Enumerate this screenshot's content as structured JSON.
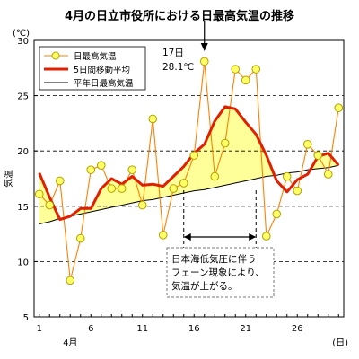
{
  "chart_data": {
    "type": "line",
    "title": "4月の日立市役所における日最高気温の推移",
    "yunit": "(℃)",
    "ylabel": "気温",
    "xunit": "(日)",
    "month_label": "4月",
    "ylim": [
      5,
      30
    ],
    "yticks": [
      5,
      10,
      15,
      20,
      25,
      30
    ],
    "xlim": [
      0.5,
      30.5
    ],
    "xticks": [
      1,
      6,
      11,
      16,
      21,
      26
    ],
    "grid": "horizontal dashed",
    "legend_position": "top-left",
    "x": [
      1,
      2,
      3,
      4,
      5,
      6,
      7,
      8,
      9,
      10,
      11,
      12,
      13,
      14,
      15,
      16,
      17,
      18,
      19,
      20,
      21,
      22,
      23,
      24,
      25,
      26,
      27,
      28,
      29,
      30
    ],
    "series": [
      {
        "name": "日最高気温",
        "color": "#ff8000",
        "marker_fill": "#ffff66",
        "marker_stroke": "#b3a000",
        "values": [
          16.1,
          15.1,
          17.3,
          8.3,
          12.1,
          18.3,
          18.7,
          16.6,
          16.6,
          18.3,
          15.1,
          22.9,
          12.4,
          16.6,
          17.1,
          19.6,
          28.1,
          17.7,
          20.7,
          27.4,
          26.4,
          27.4,
          12.3,
          14.3,
          17.7,
          16.4,
          20.6,
          19.6,
          17.9,
          23.9
        ]
      },
      {
        "name": "5日間移動平均",
        "color": "#e02000",
        "values": [
          18.0,
          15.8,
          13.8,
          14.1,
          14.8,
          14.8,
          16.6,
          17.5,
          17.0,
          17.7,
          16.9,
          17.0,
          16.8,
          17.7,
          18.6,
          19.8,
          20.6,
          22.7,
          24.0,
          23.8,
          22.6,
          21.5,
          19.6,
          17.3,
          16.3,
          17.4,
          17.9,
          19.5,
          19.8,
          18.7
        ]
      },
      {
        "name": "平年日最高気温",
        "color": "#000000",
        "values": [
          13.4,
          13.6,
          13.9,
          14.1,
          14.3,
          14.5,
          14.7,
          14.9,
          15.1,
          15.3,
          15.5,
          15.6,
          15.8,
          16.0,
          16.2,
          16.4,
          16.5,
          16.7,
          16.9,
          17.1,
          17.3,
          17.5,
          17.7,
          17.8,
          18.0,
          18.1,
          18.3,
          18.4,
          18.5,
          18.7
        ]
      }
    ],
    "annotations": {
      "peak_day": "17日",
      "peak_temp": "28.1℃",
      "note_lines": [
        "日本海低気圧に伴う",
        "フェーン現象により、",
        "気温が上がる。"
      ],
      "period_start": 15,
      "period_end": 22,
      "peak_x": 17,
      "fill_color": "#ffff99"
    }
  }
}
